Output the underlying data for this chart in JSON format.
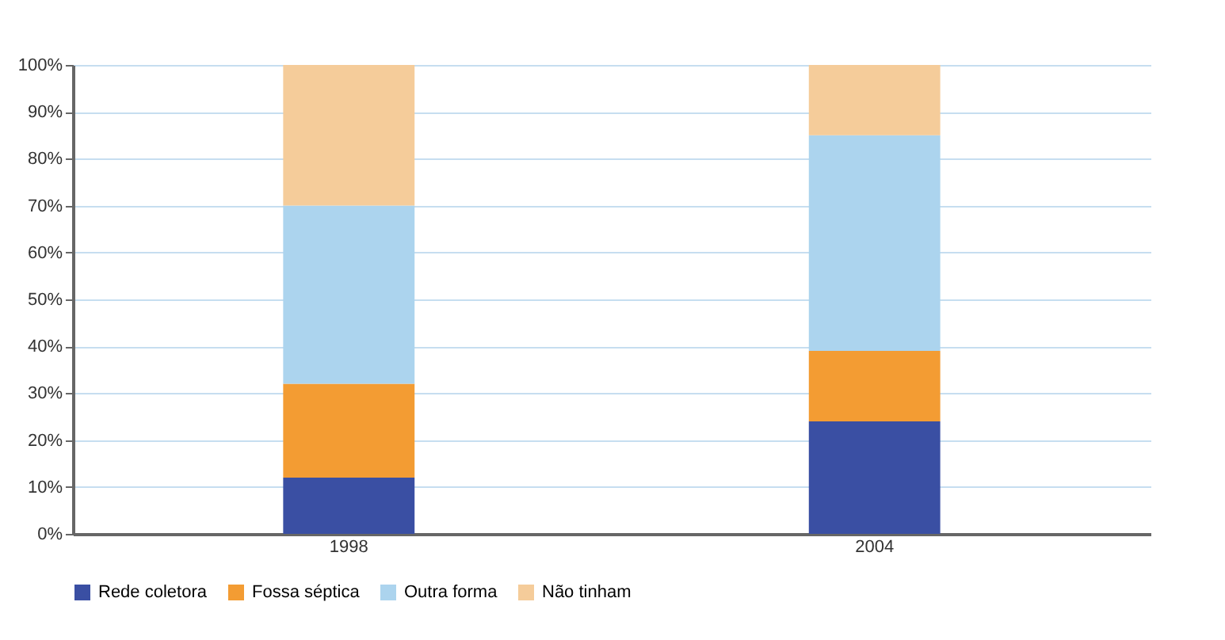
{
  "chart_data": {
    "type": "bar",
    "stacked": true,
    "categories": [
      "1998",
      "2004"
    ],
    "series": [
      {
        "name": "Rede coletora",
        "color": "#3a4fa3",
        "values": [
          12,
          24
        ]
      },
      {
        "name": "Fossa séptica",
        "color": "#f39c33",
        "values": [
          20,
          15
        ]
      },
      {
        "name": "Outra forma",
        "color": "#acd4ee",
        "values": [
          38,
          46
        ]
      },
      {
        "name": "Não tinham",
        "color": "#f5cc9a",
        "values": [
          30,
          15
        ]
      }
    ],
    "ylim": [
      0,
      100
    ],
    "yticks": [
      {
        "value": 0,
        "label": "0%"
      },
      {
        "value": 10,
        "label": "10%"
      },
      {
        "value": 20,
        "label": "20%"
      },
      {
        "value": 30,
        "label": "30%"
      },
      {
        "value": 40,
        "label": "40%"
      },
      {
        "value": 50,
        "label": "50%"
      },
      {
        "value": 60,
        "label": "60%"
      },
      {
        "value": 70,
        "label": "70%"
      },
      {
        "value": 80,
        "label": "80%"
      },
      {
        "value": 90,
        "label": "90%"
      },
      {
        "value": 100,
        "label": "100%"
      }
    ],
    "grid": "y",
    "legend": "bottom"
  }
}
